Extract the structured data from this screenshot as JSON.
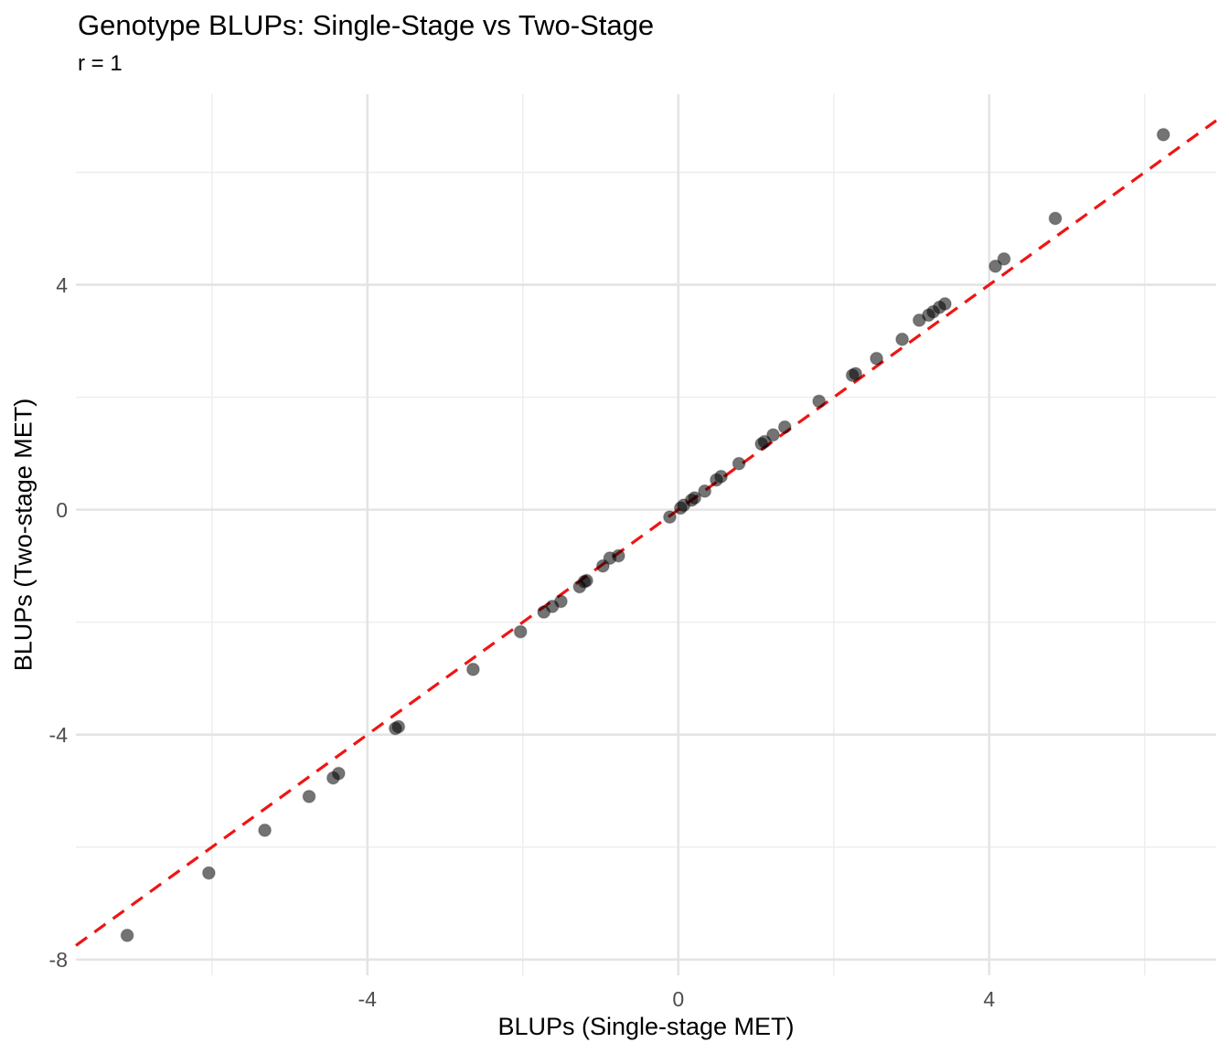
{
  "title": "Genotype BLUPs: Single-Stage vs Two-Stage",
  "subtitle": "r = 1",
  "colors": {
    "background": "#FFFFFF",
    "grid_major": "#E4E4E4",
    "grid_minor": "#EDEDED",
    "tick_label": "#4D4D4D",
    "text": "#000000",
    "reference_line": "#F01414",
    "point": "#000000"
  },
  "chart_data": {
    "type": "scatter",
    "title": "Genotype BLUPs: Single-Stage vs Two-Stage",
    "subtitle": "r = 1",
    "xlabel": "BLUPs (Single-stage MET)",
    "ylabel": "BLUPs (Two-stage MET)",
    "xlim": [
      -7.75,
      6.92
    ],
    "ylim": [
      -8.28,
      7.39
    ],
    "x_ticks": [
      -4,
      0,
      4
    ],
    "y_ticks": [
      -8,
      -4,
      0,
      4
    ],
    "x_minor_ticks": [
      -6,
      -2,
      2,
      6
    ],
    "y_minor_ticks": [
      -6,
      -2,
      2,
      6
    ],
    "grid": true,
    "legend_position": "none",
    "reference_line": {
      "kind": "identity",
      "slope": 1,
      "intercept": 0,
      "style": "dashed",
      "color": "#F01414"
    },
    "point_style": {
      "color": "#000000",
      "opacity": 0.55,
      "radius_px": 6.8
    },
    "points": [
      [
        -7.09,
        -7.57
      ],
      [
        -6.04,
        -6.46
      ],
      [
        -5.32,
        -5.7
      ],
      [
        -4.75,
        -5.1
      ],
      [
        -4.44,
        -4.77
      ],
      [
        -4.37,
        -4.69
      ],
      [
        -3.64,
        -3.89
      ],
      [
        -3.6,
        -3.86
      ],
      [
        -2.64,
        -2.84
      ],
      [
        -2.03,
        -2.17
      ],
      [
        -1.73,
        -1.82
      ],
      [
        -1.62,
        -1.72
      ],
      [
        -1.51,
        -1.63
      ],
      [
        -1.27,
        -1.37
      ],
      [
        -1.21,
        -1.28
      ],
      [
        -1.18,
        -1.26
      ],
      [
        -0.97,
        -1.0
      ],
      [
        -0.88,
        -0.86
      ],
      [
        -0.77,
        -0.82
      ],
      [
        -0.11,
        -0.13
      ],
      [
        0.03,
        0.03
      ],
      [
        0.07,
        0.08
      ],
      [
        0.17,
        0.17
      ],
      [
        0.21,
        0.21
      ],
      [
        0.34,
        0.33
      ],
      [
        0.49,
        0.53
      ],
      [
        0.55,
        0.59
      ],
      [
        0.78,
        0.82
      ],
      [
        1.07,
        1.17
      ],
      [
        1.11,
        1.21
      ],
      [
        1.22,
        1.33
      ],
      [
        1.37,
        1.47
      ],
      [
        1.81,
        1.93
      ],
      [
        2.24,
        2.39
      ],
      [
        2.28,
        2.42
      ],
      [
        2.55,
        2.69
      ],
      [
        2.88,
        3.03
      ],
      [
        3.1,
        3.37
      ],
      [
        3.22,
        3.46
      ],
      [
        3.28,
        3.52
      ],
      [
        3.36,
        3.6
      ],
      [
        3.43,
        3.66
      ],
      [
        4.08,
        4.33
      ],
      [
        4.19,
        4.46
      ],
      [
        4.85,
        5.18
      ],
      [
        6.24,
        6.67
      ]
    ]
  }
}
